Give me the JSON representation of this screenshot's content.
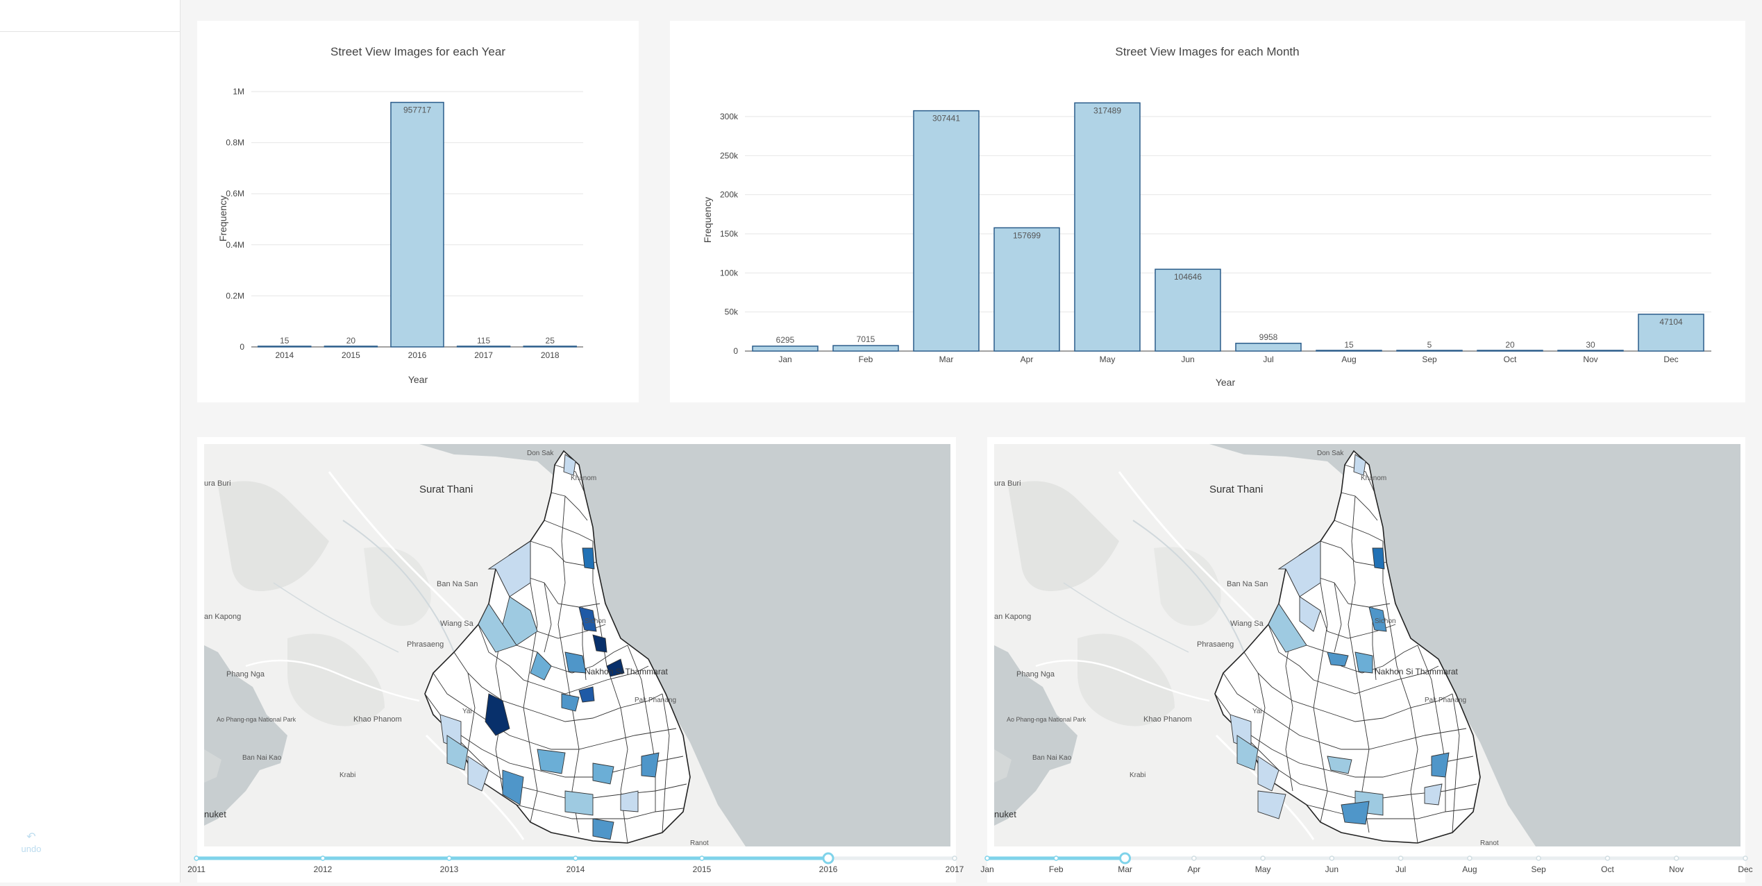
{
  "sidebar": {
    "undo_label": "undo",
    "undo_icon": "undo-icon"
  },
  "colors": {
    "bar_fill": "#b0d3e6",
    "bar_stroke": "#2a5c8a",
    "slider": "#7fd3ea",
    "map_dark": "#08306b",
    "map_mid": "#4f96c9",
    "map_light": "#c6dbef"
  },
  "year_chart": {
    "chart_data": {
      "type": "bar",
      "title": "Street View Images for each Year",
      "xlabel": "Year",
      "ylabel": "Frequency",
      "categories": [
        "2014",
        "2015",
        "2016",
        "2017",
        "2018"
      ],
      "values": [
        15,
        20,
        957717,
        115,
        25
      ],
      "data_labels": [
        "15",
        "20",
        "957717",
        "115",
        "25"
      ],
      "ylim": [
        0,
        1000000
      ],
      "yticks": [
        "0",
        "0.2M",
        "0.4M",
        "0.6M",
        "0.8M",
        "1M"
      ],
      "ytick_values": [
        0,
        200000,
        400000,
        600000,
        800000,
        1000000
      ],
      "grid": true
    }
  },
  "month_chart": {
    "chart_data": {
      "type": "bar",
      "title": "Street View Images for each Month",
      "xlabel": "Year",
      "ylabel": "Frequency",
      "categories": [
        "Jan",
        "Feb",
        "Mar",
        "Apr",
        "May",
        "Jun",
        "Jul",
        "Aug",
        "Sep",
        "Oct",
        "Nov",
        "Dec"
      ],
      "values": [
        6295,
        7015,
        307441,
        157699,
        317489,
        104646,
        9958,
        15,
        5,
        20,
        30,
        47104
      ],
      "data_labels": [
        "6295",
        "7015",
        "307441",
        "157699",
        "317489",
        "104646",
        "9958",
        "15",
        "5",
        "20",
        "30",
        "47104"
      ],
      "ylim": [
        0,
        300000
      ],
      "yticks": [
        "0",
        "50k",
        "100k",
        "150k",
        "200k",
        "250k",
        "300k"
      ],
      "ytick_values": [
        0,
        50000,
        100000,
        150000,
        200000,
        250000,
        300000
      ],
      "grid": true
    }
  },
  "map_labels": {
    "surat_thani": "Surat Thani",
    "ban_na_san": "Ban Na San",
    "wiang_sa": "Wiang Sa",
    "phrasaeng": "Phrasaeng",
    "phang_nga": "Phang Nga",
    "khao_phanom": "Khao Phanom",
    "ao_phang_nga": "Ao Phang-nga National Park",
    "ban_nai_kao": "Ban Nai Kao",
    "phuket": "nuket",
    "krabi": "Krabi",
    "nakhon": "Nakhon Si Thammarat",
    "don_sak": "Don Sak",
    "khanom": "Khanom",
    "sichon": "Sichon",
    "pak_phanang": "Pak Phanang",
    "ranot": "Ranot",
    "ura_buri": "ura Buri",
    "an_kapong": "an Kapong",
    "yai": "Yai"
  },
  "year_slider": {
    "labels": [
      "2011",
      "2012",
      "2013",
      "2014",
      "2015",
      "2016",
      "2017"
    ],
    "selected_index": 5
  },
  "month_slider": {
    "labels": [
      "Jan",
      "Feb",
      "Mar",
      "Apr",
      "May",
      "Jun",
      "Jul",
      "Aug",
      "Sep",
      "Oct",
      "Nov",
      "Dec"
    ],
    "selected_index": 2
  }
}
